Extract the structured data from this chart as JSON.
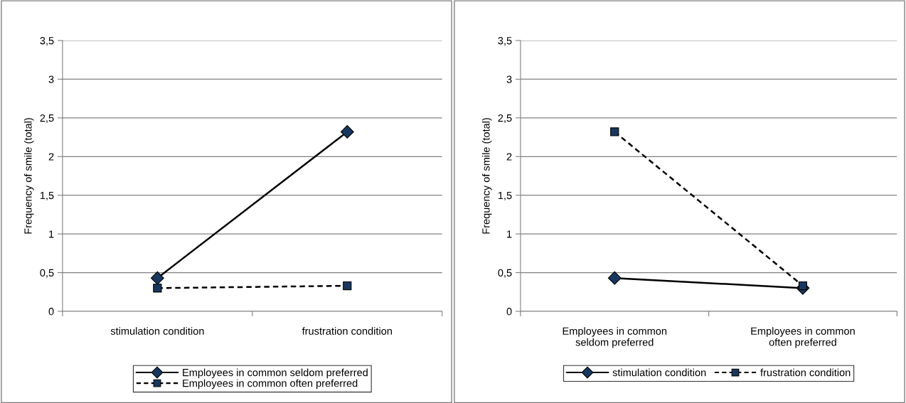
{
  "chart_data": [
    {
      "type": "line",
      "ylabel": "Frequency of smile (total)",
      "categories": [
        "stimulation condition",
        "frustration condition"
      ],
      "series": [
        {
          "name": "Employees in common seldom preferred",
          "color": "#17375e",
          "values": [
            0.43,
            2.32
          ],
          "marker": "diamond",
          "line_style": "solid"
        },
        {
          "name": "Employees in common often preferred",
          "color": "#17375e",
          "values": [
            0.3,
            0.33
          ],
          "marker": "square",
          "line_style": "dashed"
        }
      ],
      "ylim": [
        0,
        3.5
      ],
      "yticks": [
        0,
        {
          "value": 0.5,
          "label": "0,5"
        },
        1,
        {
          "value": 1.5,
          "label": "1,5"
        },
        2,
        {
          "value": 2.5,
          "label": "2,5"
        },
        3,
        {
          "value": 3.5,
          "label": "3,5"
        }
      ],
      "grid": "y",
      "legend": "bottom"
    },
    {
      "type": "line",
      "ylabel": "Frequency of smile (total)",
      "categories": [
        "Employees in common\nseldom preferred",
        "Employees in common\noften preferred"
      ],
      "series": [
        {
          "name": "stimulation condition",
          "color": "#17375e",
          "values": [
            0.43,
            0.3
          ],
          "marker": "diamond",
          "line_style": "solid"
        },
        {
          "name": "frustration condition",
          "color": "#17375e",
          "values": [
            2.32,
            0.33
          ],
          "marker": "square",
          "line_style": "dashed"
        }
      ],
      "ylim": [
        0,
        3.5
      ],
      "yticks": [
        0,
        {
          "value": 0.5,
          "label": "0,5"
        },
        1,
        {
          "value": 1.5,
          "label": "1,5"
        },
        2,
        {
          "value": 2.5,
          "label": "2,5"
        },
        3,
        {
          "value": 3.5,
          "label": "3,5"
        }
      ],
      "grid": "y",
      "legend": "bottom"
    }
  ]
}
